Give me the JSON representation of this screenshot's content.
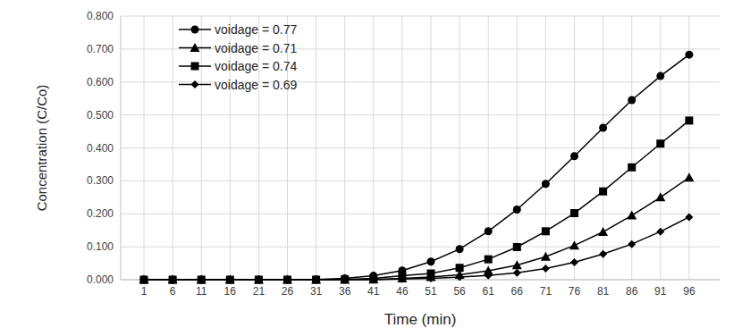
{
  "chart_data": {
    "type": "line",
    "x_label": "Time (min)",
    "y_label": "Concentration (C/Co)",
    "categories": [
      "1",
      "6",
      "11",
      "16",
      "21",
      "26",
      "31",
      "36",
      "41",
      "46",
      "51",
      "56",
      "61",
      "66",
      "71",
      "76",
      "81",
      "86",
      "91",
      "96"
    ],
    "series": [
      {
        "name": "voidage = 0.77",
        "color": "#000000",
        "marker": "circle",
        "values": [
          0,
          0,
          0,
          0,
          0,
          0,
          0.001,
          0.004,
          0.012,
          0.028,
          0.055,
          0.093,
          0.147,
          0.213,
          0.291,
          0.375,
          0.461,
          0.545,
          0.618,
          0.683
        ]
      },
      {
        "name": "voidage = 0.71",
        "color": "#000000",
        "marker": "triangle",
        "values": [
          0,
          0,
          0,
          0,
          0,
          0,
          0,
          0,
          0.001,
          0.004,
          0.008,
          0.015,
          0.027,
          0.044,
          0.07,
          0.104,
          0.145,
          0.195,
          0.25,
          0.31
        ]
      },
      {
        "name": "voidage = 0.74",
        "color": "#000000",
        "marker": "square",
        "values": [
          0,
          0,
          0,
          0,
          0,
          0,
          0,
          0.001,
          0.004,
          0.012,
          0.019,
          0.036,
          0.062,
          0.099,
          0.147,
          0.202,
          0.268,
          0.341,
          0.413,
          0.483
        ]
      },
      {
        "name": "voidage = 0.69",
        "color": "#000000",
        "marker": "diamond",
        "values": [
          0,
          0,
          0,
          0,
          0,
          0,
          0,
          0,
          0,
          0.002,
          0.004,
          0.008,
          0.013,
          0.021,
          0.034,
          0.053,
          0.078,
          0.108,
          0.146,
          0.19
        ]
      }
    ],
    "ylim": [
      0,
      0.8
    ],
    "yticks": [
      {
        "value": 0,
        "label": "0.000"
      },
      {
        "value": 0.1,
        "label": "0.100"
      },
      {
        "value": 0.2,
        "label": "0.200"
      },
      {
        "value": 0.3,
        "label": "0.300"
      },
      {
        "value": 0.4,
        "label": "0.400"
      },
      {
        "value": 0.5,
        "label": "0.500"
      },
      {
        "value": 0.6,
        "label": "0.600"
      },
      {
        "value": 0.7,
        "label": "0.700"
      },
      {
        "value": 0.8,
        "label": "0.800"
      }
    ],
    "grid": true,
    "legend": "upper left"
  }
}
